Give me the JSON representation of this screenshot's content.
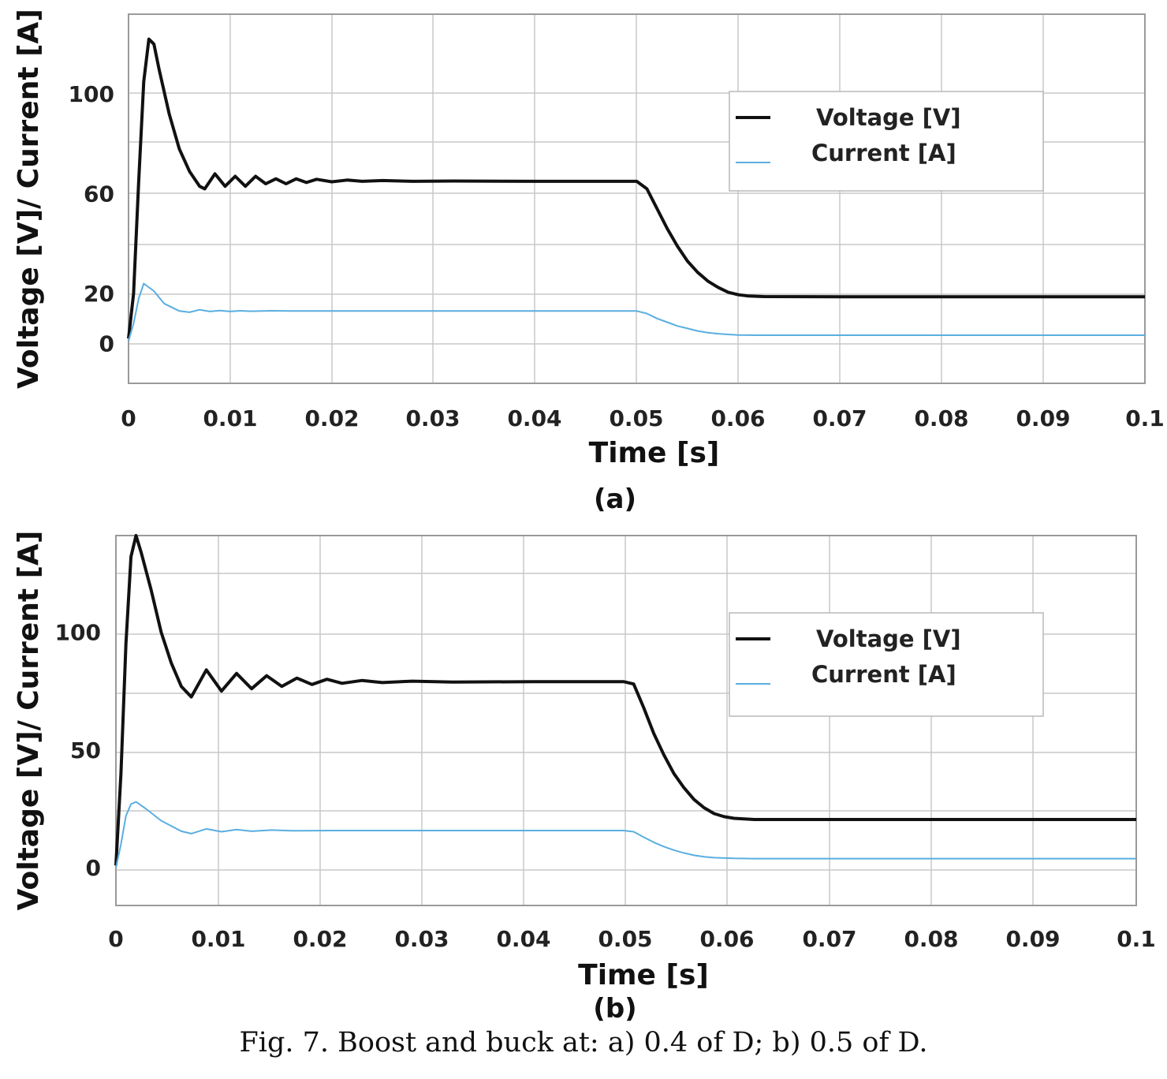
{
  "figure": {
    "caption": "Fig. 7. Boost and buck at: a)  0.4 of D; b) 0.5 of D."
  },
  "colors": {
    "voltage": "#111111",
    "current": "#5aaee0",
    "grid": "#c8c8c8",
    "frame": "#9a9a9a"
  },
  "chart_data": [
    {
      "type": "line",
      "panel_label": "(a)",
      "xlabel": "Time [s]",
      "ylabel": "Voltage [V]/ Current [A]",
      "xlim": [
        0,
        0.1
      ],
      "ylim": [
        -16,
        132
      ],
      "xticks": [
        0,
        0.01,
        0.02,
        0.03,
        0.04,
        0.05,
        0.06,
        0.07,
        0.08,
        0.09,
        0.1
      ],
      "xtick_labels": [
        "0",
        "0.01",
        "0.02",
        "0.03",
        "0.04",
        "0.05",
        "0.06",
        "0.07",
        "0.08",
        "0.09",
        "0.1"
      ],
      "yticks": [
        0,
        20,
        60,
        100
      ],
      "ytick_labels": [
        "0",
        "20",
        "60",
        "100"
      ],
      "grid": true,
      "legend_position": "top-right",
      "series": [
        {
          "name": "Voltage [V]",
          "x": [
            0,
            0.0005,
            0.001,
            0.0015,
            0.002,
            0.0025,
            0.003,
            0.004,
            0.005,
            0.006,
            0.007,
            0.0075,
            0.0085,
            0.0095,
            0.0105,
            0.0115,
            0.0125,
            0.0135,
            0.0145,
            0.0155,
            0.0165,
            0.0175,
            0.0185,
            0.02,
            0.0215,
            0.023,
            0.025,
            0.028,
            0.032,
            0.04,
            0.05,
            0.051,
            0.052,
            0.053,
            0.054,
            0.055,
            0.056,
            0.057,
            0.058,
            0.059,
            0.06,
            0.061,
            0.0625,
            0.07,
            0.08,
            0.09,
            0.1
          ],
          "y": [
            2,
            20,
            65,
            105,
            122,
            120,
            110,
            92,
            78,
            69,
            63,
            62,
            68,
            63,
            67,
            63,
            67,
            64,
            66,
            64,
            66,
            64.5,
            65.8,
            64.8,
            65.5,
            65,
            65.3,
            65,
            65.1,
            65,
            65,
            62,
            54,
            46,
            39,
            33,
            28.5,
            25,
            22.5,
            20.5,
            19.5,
            19,
            18.8,
            18.7,
            18.7,
            18.7,
            18.7
          ]
        },
        {
          "name": "Current [A]",
          "x": [
            0,
            0.0005,
            0.001,
            0.0015,
            0.0025,
            0.0035,
            0.005,
            0.006,
            0.007,
            0.008,
            0.009,
            0.01,
            0.011,
            0.012,
            0.014,
            0.016,
            0.02,
            0.03,
            0.04,
            0.05,
            0.051,
            0.052,
            0.053,
            0.054,
            0.055,
            0.056,
            0.057,
            0.058,
            0.059,
            0.06,
            0.062,
            0.07,
            0.08,
            0.09,
            0.1
          ],
          "y": [
            1,
            8,
            18,
            24,
            21,
            16,
            13,
            12.5,
            13.5,
            12.8,
            13.2,
            12.8,
            13.1,
            12.9,
            13.1,
            13,
            13,
            13,
            13,
            13,
            12,
            10,
            8.5,
            7,
            6,
            5,
            4.3,
            3.9,
            3.6,
            3.4,
            3.3,
            3.3,
            3.3,
            3.3,
            3.3
          ]
        }
      ]
    },
    {
      "type": "line",
      "panel_label": "(b)",
      "xlabel": "Time [s]",
      "ylabel": "Voltage [V]/ Current [A]",
      "xlim": [
        -0.0015,
        0.1
      ],
      "ylim": [
        -16,
        141
      ],
      "xticks": [
        0,
        0.01,
        0.02,
        0.03,
        0.04,
        0.05,
        0.06,
        0.07,
        0.08,
        0.09,
        0.1
      ],
      "xtick_labels": [
        "0",
        "0.01",
        "0.02",
        "0.03",
        "0.04",
        "0.05",
        "0.06",
        "0.07",
        "0.08",
        "0.09",
        "0.1"
      ],
      "yticks": [
        0,
        50,
        100
      ],
      "ytick_labels": [
        "0",
        "50",
        "100"
      ],
      "grid": true,
      "legend_position": "top-right",
      "series": [
        {
          "name": "Voltage [V]",
          "x": [
            -0.0015,
            -0.001,
            -0.0005,
            0.0,
            0.0005,
            0.001,
            0.002,
            0.003,
            0.004,
            0.005,
            0.006,
            0.0075,
            0.009,
            0.0105,
            0.012,
            0.0135,
            0.015,
            0.0165,
            0.018,
            0.0195,
            0.021,
            0.023,
            0.025,
            0.028,
            0.032,
            0.04,
            0.049,
            0.05,
            0.051,
            0.052,
            0.053,
            0.054,
            0.055,
            0.056,
            0.057,
            0.058,
            0.059,
            0.06,
            0.062,
            0.07,
            0.08,
            0.09,
            0.1
          ],
          "y": [
            1,
            40,
            95,
            132,
            141,
            134,
            118,
            100,
            87,
            77,
            72.5,
            84,
            75,
            82.5,
            76,
            81.5,
            77,
            80.5,
            77.8,
            80,
            78.3,
            79.5,
            78.6,
            79.2,
            78.8,
            79,
            79,
            78,
            68,
            57,
            48,
            40,
            34,
            29,
            25.5,
            23,
            21.7,
            21,
            20.5,
            20.5,
            20.5,
            20.5,
            20.5
          ]
        },
        {
          "name": "Current [A]",
          "x": [
            -0.0015,
            -0.001,
            -0.0005,
            0.0,
            0.0005,
            0.0015,
            0.003,
            0.005,
            0.006,
            0.0075,
            0.009,
            0.0105,
            0.012,
            0.014,
            0.016,
            0.02,
            0.03,
            0.04,
            0.049,
            0.05,
            0.051,
            0.052,
            0.053,
            0.054,
            0.055,
            0.056,
            0.057,
            0.058,
            0.06,
            0.062,
            0.07,
            0.08,
            0.09,
            0.1
          ],
          "y": [
            0,
            10,
            22,
            27,
            28,
            25,
            20,
            15.5,
            14.5,
            16.5,
            15.3,
            16.2,
            15.5,
            16,
            15.7,
            15.8,
            15.8,
            15.8,
            15.8,
            15.3,
            13,
            10.8,
            9,
            7.5,
            6.3,
            5.3,
            4.7,
            4.3,
            4,
            3.9,
            3.9,
            3.9,
            3.9,
            3.9
          ]
        }
      ]
    }
  ]
}
